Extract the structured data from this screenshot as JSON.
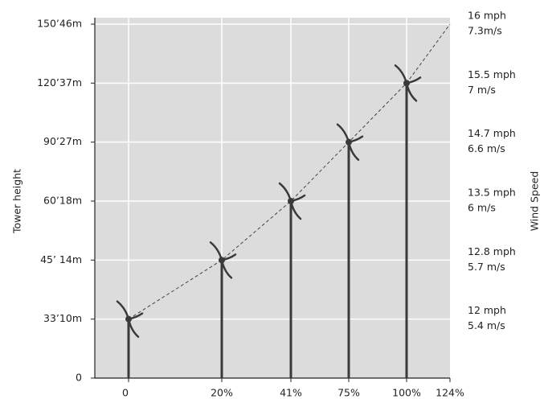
{
  "chart_data": {
    "type": "line",
    "y_label": "Tower height",
    "y2_label": "Wind Speed",
    "categories": [
      "0",
      "20%",
      "41%",
      "75%",
      "100%",
      "124%"
    ],
    "values": [
      33,
      45,
      60,
      90,
      120,
      150
    ],
    "tower_heights": [
      33,
      45,
      60,
      90,
      120
    ],
    "color": "#3a3a3a",
    "ylim": [
      0,
      150
    ],
    "yticks": [
      0,
      {
        "value": 33,
        "label": "33’10m"
      },
      {
        "value": 45,
        "label": "45’ 14m"
      },
      {
        "value": 60,
        "label": "60’18m"
      },
      {
        "value": 90,
        "label": "90’27m"
      },
      {
        "value": 120,
        "label": "120’37m"
      },
      {
        "value": 150,
        "label": "150’46m"
      }
    ],
    "wind_speeds": [
      {
        "height": 33,
        "mph": "12 mph",
        "ms": "5.4 m/s"
      },
      {
        "height": 45,
        "mph": "12.8 mph",
        "ms": "5.7 m/s"
      },
      {
        "height": 60,
        "mph": "13.5 mph",
        "ms": "6 m/s"
      },
      {
        "height": 90,
        "mph": "14.7 mph",
        "ms": "6.6 m/s"
      },
      {
        "height": 120,
        "mph": "15.5 mph",
        "ms": "7 m/s"
      },
      {
        "height": 150,
        "mph": "16 mph",
        "ms": "7.3m/s"
      }
    ],
    "grid": true
  }
}
